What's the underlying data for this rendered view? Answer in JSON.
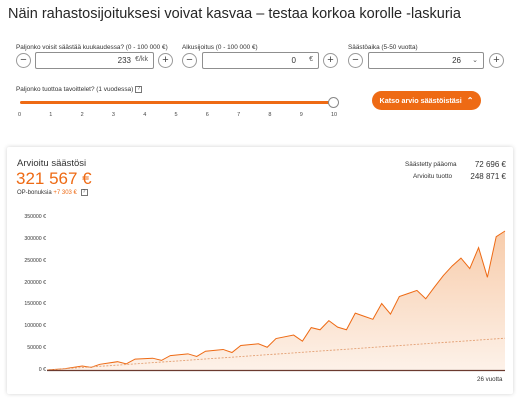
{
  "title": "Näin rahastosijoituksesi voivat kasvaa – testaa korkoa korolle -laskuria",
  "monthly": {
    "label": "Paljonko voisit säästää kuukaudessa? (0 - 100 000 €)",
    "value": "233",
    "unit": "€/kk"
  },
  "initial": {
    "label": "Alkusijoitus (0 - 100 000 €)",
    "value": "0",
    "unit": "€"
  },
  "period": {
    "label": "Säästöaika (5-50 vuotta)",
    "value": "26",
    "unit": "v"
  },
  "buttons": {
    "minus": "−",
    "plus": "+"
  },
  "return": {
    "label": "Paljonko tuottoa tavoittelet? (1 vuodessa)",
    "help": "?",
    "ticks": [
      "0",
      "1",
      "2",
      "3",
      "4",
      "5",
      "6",
      "7",
      "8",
      "9",
      "10"
    ],
    "value_fraction": 1.0
  },
  "cta": "Katso arvio säästöistäsi",
  "cta_icon": "chevron-up-icon",
  "summary": {
    "estimate_label": "Arvioitu säästösi",
    "estimate_value": "321 567 €",
    "bonus_label": "OP-bonuksia",
    "bonus_value": "+7 303 €",
    "bonus_help": "?",
    "principal_label": "Säästetty pääoma",
    "principal_value": "72 696 €",
    "yield_label": "Arvioitu tuotto",
    "yield_value": "248 871 €"
  },
  "colors": {
    "accent": "#ee6a14",
    "area": "#f7c9a6",
    "principal_line": "#e3a074",
    "axis": "#6b3a2f"
  },
  "chart_data": {
    "type": "area",
    "x_end_label": "26 vuotta",
    "y_ticks": [
      "350000 €",
      "300000 €",
      "250000 €",
      "200000 €",
      "150000 €",
      "100000 €",
      "50000 €",
      "0 €"
    ],
    "ylim": [
      0,
      350000
    ],
    "xlim": [
      0,
      26
    ],
    "series": [
      {
        "x": [
          0,
          1,
          2,
          2.5,
          3,
          4,
          4.5,
          5,
          6,
          6.5,
          7,
          8,
          8.5,
          9,
          10,
          10.5,
          11,
          12,
          12.5,
          13,
          14,
          14.5,
          15,
          15.5,
          16,
          16.5,
          17,
          17.5,
          18,
          18.5,
          19,
          19.5,
          20,
          20.5,
          21,
          21.5,
          22,
          22.5,
          23,
          23.5,
          24,
          24.5,
          25,
          25.5,
          26
        ],
        "values": [
          0,
          3000,
          9000,
          6000,
          13000,
          19000,
          14000,
          25000,
          27000,
          22000,
          33000,
          37000,
          31000,
          43000,
          47000,
          40000,
          56000,
          60000,
          52000,
          72000,
          80000,
          66000,
          97000,
          92000,
          113000,
          98000,
          92000,
          130000,
          123000,
          116000,
          152000,
          128000,
          168000,
          175000,
          182000,
          163000,
          190000,
          216000,
          238000,
          256000,
          232000,
          280000,
          212000,
          305000,
          318000
        ]
      },
      {
        "x": [
          0,
          26
        ],
        "values": [
          0,
          72696
        ]
      }
    ]
  }
}
